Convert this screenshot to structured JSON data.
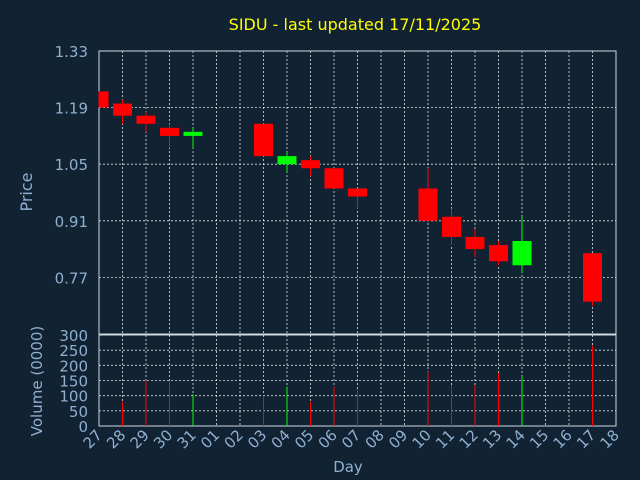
{
  "chart_data": {
    "type": "candlestick",
    "title": "SIDU - last updated 17/11/2025",
    "xlabel": "Day",
    "ylabel": "Price",
    "ylabel_volume": "Volume (0000)",
    "price_ticks": [
      "1.33",
      "1.19",
      "1.05",
      "0.91",
      "0.77"
    ],
    "price_ylim": [
      0.63,
      1.33
    ],
    "volume_ticks": [
      "300",
      "250",
      "200",
      "150",
      "100",
      "50",
      "0"
    ],
    "volume_ylim": [
      0,
      300
    ],
    "x_ticks": [
      "27",
      "28",
      "29",
      "30",
      "31",
      "01",
      "02",
      "03",
      "04",
      "05",
      "06",
      "07",
      "08",
      "09",
      "10",
      "11",
      "12",
      "13",
      "14",
      "15",
      "16",
      "17",
      "18"
    ],
    "grid": true,
    "colors": {
      "background": "#112233",
      "up": "#00ff00",
      "down": "#ff0000",
      "grid": "#ffffff",
      "axis_text": "#8fb0d0",
      "title": "#ffff00"
    },
    "candles": [
      {
        "x": "27",
        "open": 1.23,
        "high": 1.23,
        "low": 1.19,
        "close": 1.19,
        "volume": 0
      },
      {
        "x": "28",
        "open": 1.2,
        "high": 1.21,
        "low": 1.15,
        "close": 1.17,
        "volume": 80
      },
      {
        "x": "29",
        "open": 1.17,
        "high": 1.18,
        "low": 1.13,
        "close": 1.15,
        "volume": 150
      },
      {
        "x": "30",
        "open": 1.14,
        "high": 1.15,
        "low": 1.09,
        "close": 1.12,
        "volume": 150
      },
      {
        "x": "31",
        "open": 1.12,
        "high": 1.14,
        "low": 1.09,
        "close": 1.13,
        "volume": 105
      },
      {
        "x": "03",
        "open": 1.15,
        "high": 1.15,
        "low": 1.07,
        "close": 1.07,
        "volume": 100
      },
      {
        "x": "04",
        "open": 1.05,
        "high": 1.08,
        "low": 1.03,
        "close": 1.07,
        "volume": 130
      },
      {
        "x": "05",
        "open": 1.06,
        "high": 1.07,
        "low": 1.02,
        "close": 1.04,
        "volume": 80
      },
      {
        "x": "06",
        "open": 1.04,
        "high": 1.04,
        "low": 0.99,
        "close": 0.99,
        "volume": 130
      },
      {
        "x": "07",
        "open": 0.99,
        "high": 0.99,
        "low": 0.94,
        "close": 0.97,
        "volume": 120
      },
      {
        "x": "10",
        "open": 0.99,
        "high": 1.04,
        "low": 0.91,
        "close": 0.91,
        "volume": 180
      },
      {
        "x": "11",
        "open": 0.92,
        "high": 0.94,
        "low": 0.85,
        "close": 0.87,
        "volume": 135
      },
      {
        "x": "12",
        "open": 0.87,
        "high": 0.89,
        "low": 0.82,
        "close": 0.84,
        "volume": 135
      },
      {
        "x": "13",
        "open": 0.85,
        "high": 0.86,
        "low": 0.8,
        "close": 0.81,
        "volume": 175
      },
      {
        "x": "14",
        "open": 0.8,
        "high": 0.92,
        "low": 0.78,
        "close": 0.86,
        "volume": 165
      },
      {
        "x": "17",
        "open": 0.83,
        "high": 0.83,
        "low": 0.7,
        "close": 0.71,
        "volume": 265
      }
    ]
  }
}
